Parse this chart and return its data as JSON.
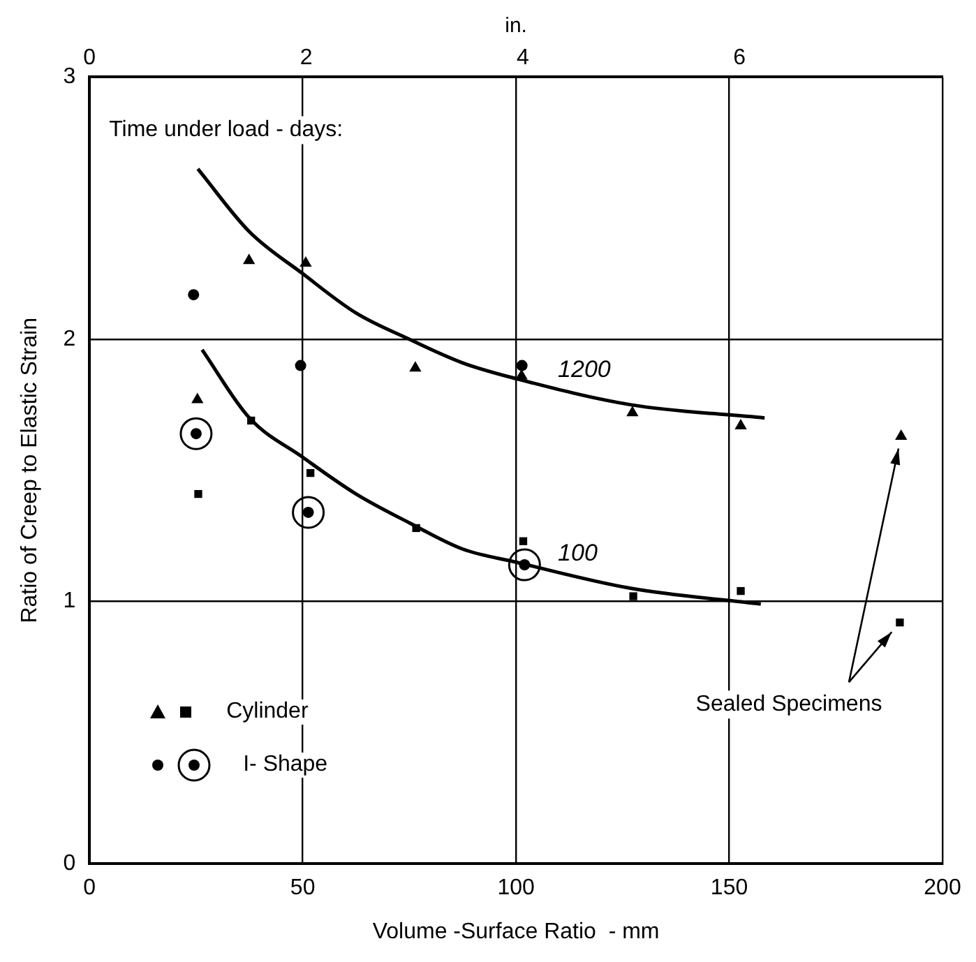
{
  "chart_data": {
    "type": "scatter",
    "xlabel": "Volume -Surface Ratio  - mm",
    "ylabel": "Ratio of Creep to Elastic Strain",
    "x2label": "in.",
    "xlim": [
      0,
      200
    ],
    "xticks": [
      0,
      50,
      100,
      150,
      200
    ],
    "x2lim": [
      0,
      7.874
    ],
    "x2ticks": [
      0,
      2,
      4,
      6
    ],
    "ylim": [
      0,
      3
    ],
    "yticks": [
      0,
      1,
      2,
      3
    ],
    "grid": true,
    "legend": "bottom left",
    "annotations": [
      "Time under load - days:",
      "Sealed Specimens"
    ],
    "series": [
      {
        "marker": "triangle",
        "color": "#000000",
        "x": [
          25.3,
          37.4,
          50.7,
          76.4,
          101.3,
          127.3,
          152.7,
          190.3
        ],
        "values": [
          1.77,
          2.3,
          2.29,
          1.89,
          1.86,
          1.72,
          1.67,
          1.63
        ]
      },
      {
        "name": "Cylinder",
        "marker": "square",
        "color": "#000000",
        "x": [
          25.5,
          37.9,
          51.8,
          76.6,
          101.7,
          127.5,
          152.7,
          190
        ],
        "values": [
          1.41,
          1.69,
          1.49,
          1.28,
          1.23,
          1.02,
          1.04,
          0.92
        ]
      },
      {
        "marker": "circle",
        "color": "#000000",
        "x": [
          24.4,
          49.5,
          101.4
        ],
        "values": [
          2.17,
          1.9,
          1.9
        ]
      },
      {
        "name": "I- Shape",
        "marker": "circled-dot",
        "color": "#000000",
        "x": [
          25.0,
          51.3,
          102.0
        ],
        "values": [
          1.64,
          1.34,
          1.14
        ]
      },
      {
        "name": "1200",
        "type": "line",
        "marker": "none",
        "color": "#000000",
        "x": [
          25.4,
          37.5,
          50,
          62.5,
          75,
          87.5,
          100,
          127,
          158.3
        ],
        "values": [
          2.65,
          2.41,
          2.25,
          2.1,
          2.0,
          1.91,
          1.85,
          1.75,
          1.7
        ]
      },
      {
        "name": "100",
        "type": "line",
        "marker": "none",
        "color": "#000000",
        "x": [
          26.4,
          37.5,
          50,
          62.5,
          75,
          87.5,
          100,
          127,
          157.4
        ],
        "values": [
          1.96,
          1.7,
          1.55,
          1.41,
          1.3,
          1.2,
          1.15,
          1.05,
          0.99
        ]
      }
    ]
  }
}
